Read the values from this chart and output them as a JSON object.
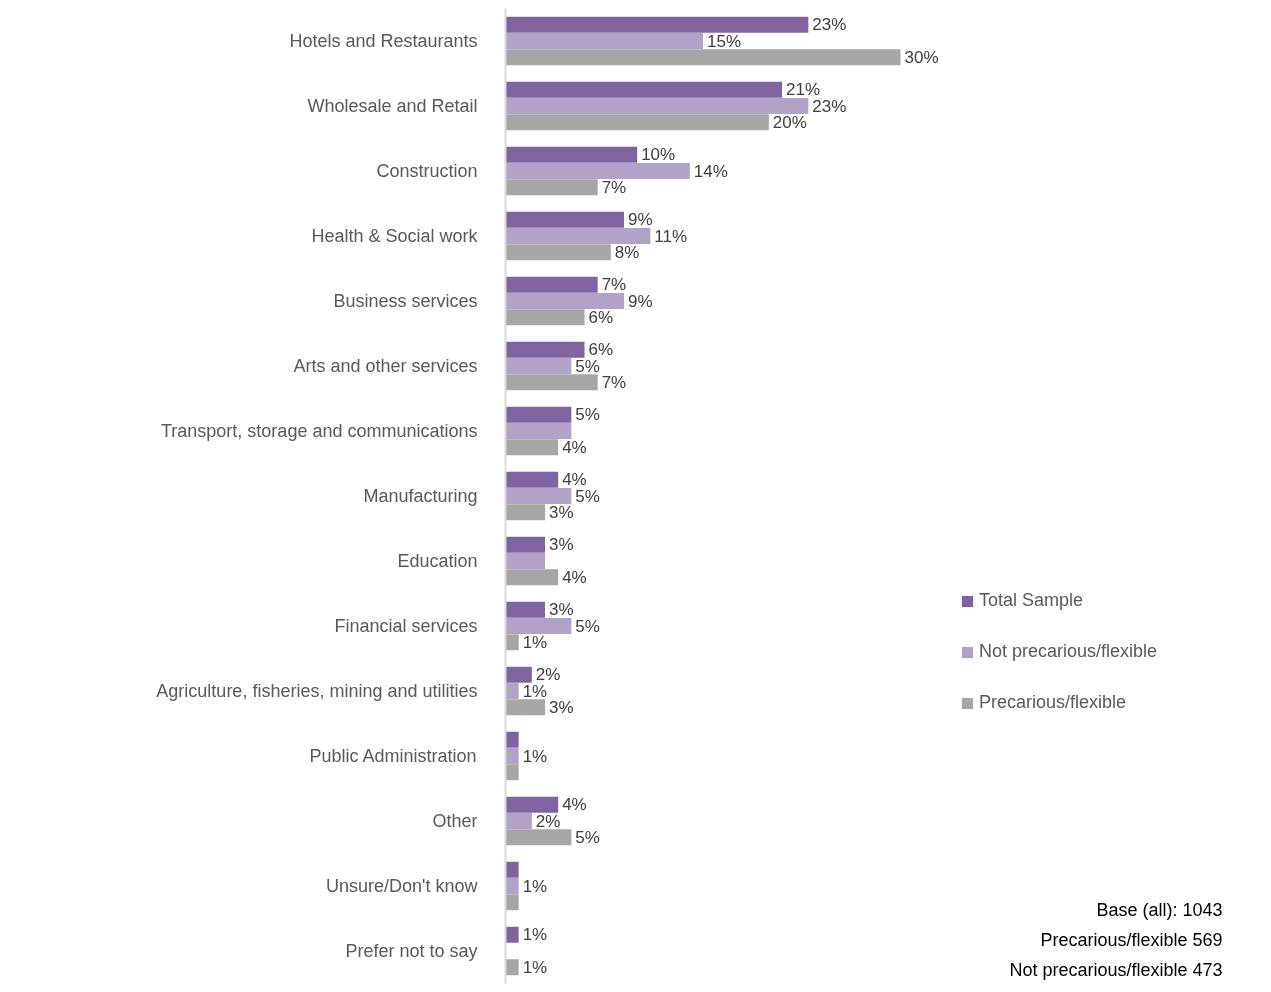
{
  "chart_data": {
    "type": "bar",
    "orientation": "horizontal",
    "tick_labels": "y",
    "legend": "right",
    "grid": false,
    "categories": [
      "Hotels and Restaurants",
      "Wholesale and Retail",
      "Construction",
      "Health & Social work",
      "Business services",
      "Arts and other services",
      "Transport, storage and communications",
      "Manufacturing",
      "Education",
      "Financial services",
      "Agriculture, fisheries, mining and utilities",
      "Public Administration",
      "Other",
      "Unsure/Don't know",
      "Prefer not to say"
    ],
    "series": [
      {
        "name": "Total Sample",
        "color": "#8064a2",
        "values": [
          23,
          21,
          10,
          9,
          7,
          6,
          5,
          4,
          3,
          3,
          2,
          1,
          4,
          1,
          1
        ],
        "value_labels": [
          "23%",
          "21%",
          "10%",
          "9%",
          "7%",
          "6%",
          "5%",
          "4%",
          "3%",
          "3%",
          "2%",
          null,
          "4%",
          null,
          "1%"
        ]
      },
      {
        "name": "Not precarious/flexible",
        "color": "#b3a2c7",
        "values": [
          15,
          23,
          14,
          11,
          9,
          5,
          5,
          5,
          3,
          5,
          1,
          1,
          2,
          1,
          null
        ],
        "value_labels": [
          "15%",
          "23%",
          "14%",
          "11%",
          "9%",
          "5%",
          null,
          "5%",
          null,
          "5%",
          "1%",
          "1%",
          "2%",
          "1%",
          null
        ]
      },
      {
        "name": "Precarious/flexible",
        "color": "#a6a6a6",
        "values": [
          30,
          20,
          7,
          8,
          6,
          7,
          4,
          3,
          4,
          1,
          3,
          1,
          5,
          1,
          1
        ],
        "value_labels": [
          "30%",
          "20%",
          "7%",
          "8%",
          "6%",
          "7%",
          "4%",
          "3%",
          "4%",
          "1%",
          "3%",
          null,
          "5%",
          null,
          "1%"
        ]
      }
    ],
    "annotations": [
      "Base (all): 1043",
      "Precarious/flexible 569",
      "Not precarious/flexible 473"
    ]
  }
}
